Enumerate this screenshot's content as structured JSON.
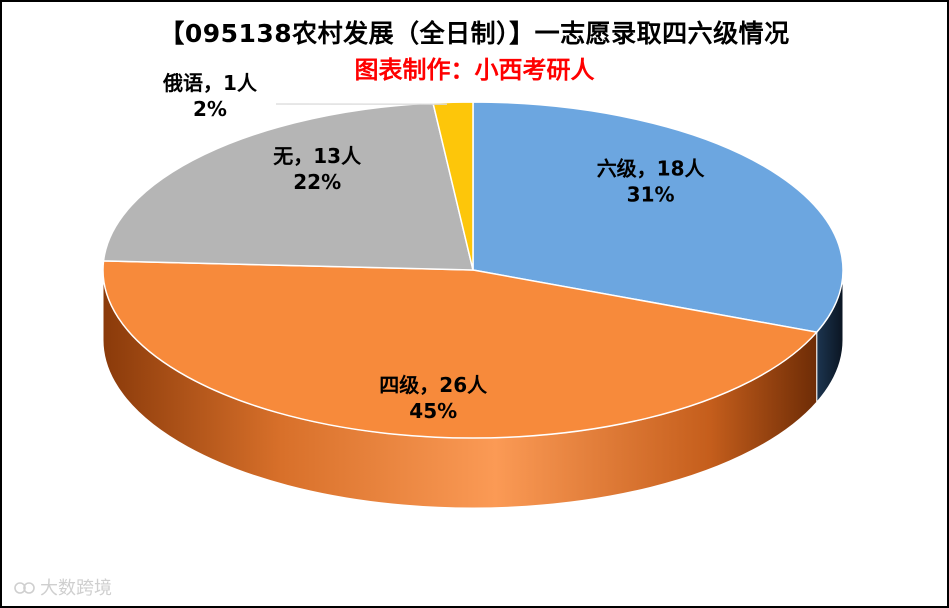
{
  "title": "【095138农村发展（全日制）】一志愿录取四六级情况",
  "subtitle": "图表制作：小西考研人",
  "watermark": "大数跨境",
  "chart_data": {
    "type": "pie",
    "categories": [
      "六级",
      "四级",
      "无",
      "俄语"
    ],
    "values": [
      18,
      26,
      13,
      1
    ],
    "unit": "人",
    "percents": [
      "31%",
      "45%",
      "22%",
      "2%"
    ],
    "labels": [
      "六级，18人",
      "四级，26人",
      "无，13人",
      "俄语，1人"
    ],
    "colors": [
      "#6ca6e0",
      "#f78a3b",
      "#b5b5b5",
      "#fdc60a"
    ],
    "legend": "none"
  }
}
